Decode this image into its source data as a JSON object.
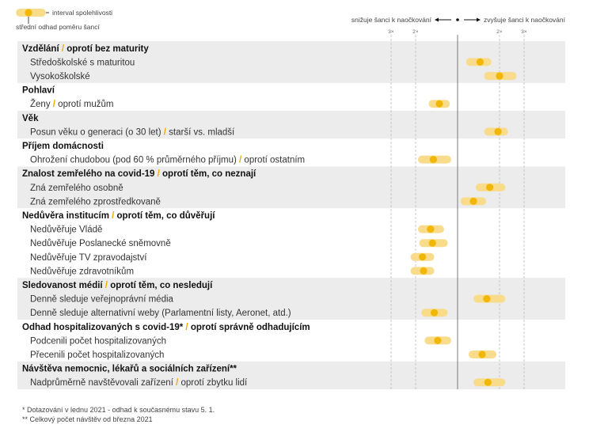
{
  "legend": {
    "interval_label": "interval spolehlivosti",
    "estimate_label": "střední odhad poměru šancí"
  },
  "direction": {
    "left": "snižuje šanci k naočkování",
    "right": "zvyšuje šanci k naočkování"
  },
  "ticks": [
    "3×",
    "2×",
    "2×",
    "3×"
  ],
  "colors": {
    "interval": "#f8dc8c",
    "estimate": "#f2b705",
    "reference": "#f2a900",
    "band": "#ececec"
  },
  "chart_data": {
    "type": "forest",
    "scale": "log odds ratio",
    "xlim": [
      0.25,
      4
    ],
    "groups": [
      {
        "label": "Vzdělání",
        "ref": "oprotí bez maturity",
        "rows": [
          {
            "label": "Středoškolské s maturitou",
            "lo": 1.15,
            "est": 1.45,
            "hi": 1.75
          },
          {
            "label": "Vysokoškolské",
            "lo": 1.55,
            "est": 2.0,
            "hi": 2.65
          }
        ]
      },
      {
        "label": "Pohlaví",
        "ref": "",
        "rows": [
          {
            "label": "Ženy",
            "ref": "oprotí mužům",
            "lo": 0.62,
            "est": 0.74,
            "hi": 0.88
          }
        ]
      },
      {
        "label": "Věk",
        "ref": "",
        "rows": [
          {
            "label": "Posun věku o generaci (o 30 let)",
            "ref": "starší vs. mladší",
            "lo": 1.55,
            "est": 1.95,
            "hi": 2.3
          }
        ]
      },
      {
        "label": "Příjem domácnosti",
        "ref": "",
        "rows": [
          {
            "label": "Ohrožení chudobou (pod 60 % průměrného příjmu)",
            "ref": "oprotí ostatním",
            "lo": 0.52,
            "est": 0.67,
            "hi": 0.9
          }
        ]
      },
      {
        "label": "Znalost zemřelého na covid-19",
        "ref": "oprotí těm, co neznají",
        "rows": [
          {
            "label": "Zná zemřelého osobně",
            "lo": 1.35,
            "est": 1.7,
            "hi": 2.2
          },
          {
            "label": "Zná zemřelého zprostředkovaně",
            "lo": 1.05,
            "est": 1.3,
            "hi": 1.6
          }
        ]
      },
      {
        "label": "Nedůvěra institucím",
        "ref": "oprotí těm, co důvěřují",
        "rows": [
          {
            "label": "Nedůvěřuje Vládě",
            "lo": 0.52,
            "est": 0.64,
            "hi": 0.8
          },
          {
            "label": "Nedůvěřuje Poslanecké sněmovně",
            "lo": 0.53,
            "est": 0.66,
            "hi": 0.85
          },
          {
            "label": "Nedůvěřuje TV zpravodajství",
            "lo": 0.46,
            "est": 0.56,
            "hi": 0.68
          },
          {
            "label": "Nedůvěřuje zdravotníkům",
            "lo": 0.46,
            "est": 0.57,
            "hi": 0.68
          }
        ]
      },
      {
        "label": "Sledovanost médií",
        "ref": "oprotí těm, co nesledují",
        "rows": [
          {
            "label": "Denně sleduje veřejnoprávní média",
            "lo": 1.3,
            "est": 1.62,
            "hi": 2.2
          },
          {
            "label": "Denně sleduje alternativní weby (Parlamentní listy, Aeronet, atd.)",
            "lo": 0.55,
            "est": 0.68,
            "hi": 0.85
          }
        ]
      },
      {
        "label": "Odhad hospitalizovaných s covid-19*",
        "ref": "oprotí správně odhadujícím",
        "rows": [
          {
            "label": "Podcenili počet hospitalizovaných",
            "lo": 0.58,
            "est": 0.72,
            "hi": 0.9
          },
          {
            "label": "Přecenili počet hospitalizovaných",
            "lo": 1.2,
            "est": 1.5,
            "hi": 1.9
          }
        ]
      },
      {
        "label": "Návštěva nemocnic, lékařů a sociálních zařízení**",
        "ref": "",
        "rows": [
          {
            "label": "Nadprůměrně navštěvovali zařízení",
            "ref": "oprotí zbytku lidí",
            "lo": 1.3,
            "est": 1.65,
            "hi": 2.2
          }
        ]
      }
    ]
  },
  "footnotes": [
    "* Dotazování v lednu 2021 - odhad k současnému stavu 5. 1.",
    "** Celkový počet návštěv od března 2021"
  ]
}
